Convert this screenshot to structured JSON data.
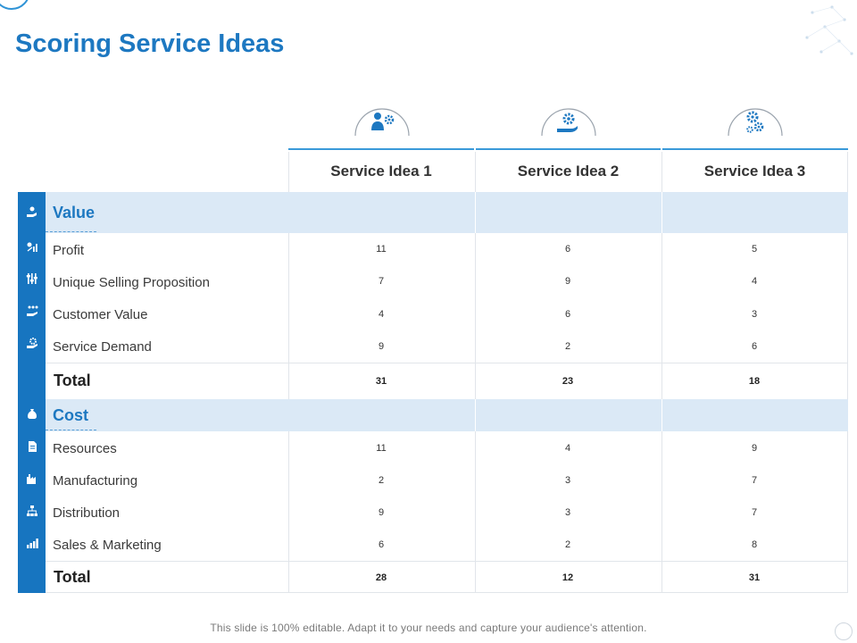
{
  "title": "Scoring Service Ideas",
  "columns": [
    {
      "label": "Service Idea 1",
      "icon": "person-gear-icon"
    },
    {
      "label": "Service Idea 2",
      "icon": "hand-gear-icon"
    },
    {
      "label": "Service Idea 3",
      "icon": "gears-icon"
    }
  ],
  "value_section": {
    "label": "Value",
    "icon": "hand-plant-icon",
    "rows": [
      {
        "label": "Profit",
        "icon": "coins-chart-icon",
        "values": [
          "11",
          "6",
          "5"
        ]
      },
      {
        "label": "Unique Selling Proposition",
        "icon": "sliders-icon",
        "values": [
          "7",
          "9",
          "4"
        ]
      },
      {
        "label": "Customer Value",
        "icon": "hand-people-icon",
        "values": [
          "4",
          "6",
          "3"
        ]
      },
      {
        "label": "Service Demand",
        "icon": "hand-gear-icon",
        "values": [
          "9",
          "2",
          "6"
        ]
      }
    ],
    "total_label": "Total",
    "totals": [
      "31",
      "23",
      "18"
    ]
  },
  "cost_section": {
    "label": "Cost",
    "icon": "money-bag-icon",
    "rows": [
      {
        "label": "Resources",
        "icon": "document-icon",
        "values": [
          "11",
          "4",
          "9"
        ]
      },
      {
        "label": "Manufacturing",
        "icon": "factory-icon",
        "values": [
          "2",
          "3",
          "7"
        ]
      },
      {
        "label": "Distribution",
        "icon": "hierarchy-icon",
        "values": [
          "9",
          "3",
          "7"
        ]
      },
      {
        "label": "Sales & Marketing",
        "icon": "bar-chart-icon",
        "values": [
          "6",
          "2",
          "8"
        ]
      }
    ],
    "total_label": "Total",
    "totals": [
      "28",
      "12",
      "31"
    ]
  },
  "footer": "This slide is 100% editable. Adapt it to your needs and capture your audience's attention.",
  "colors": {
    "accent": "#1d78c1",
    "sidebar": "#1775c0",
    "band": "#dbe9f6"
  }
}
